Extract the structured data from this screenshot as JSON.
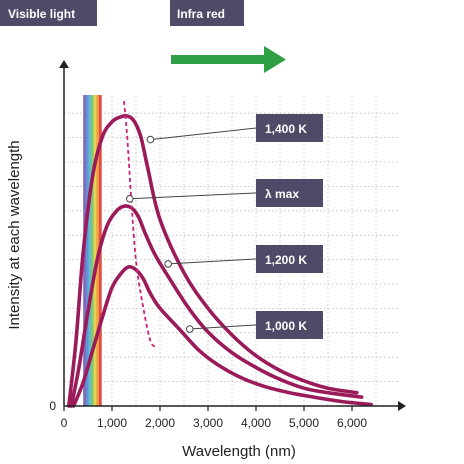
{
  "chart_data": {
    "type": "line",
    "title": "",
    "xlabel": "Wavelength (nm)",
    "ylabel": "Intensity at each wavelength",
    "xlim": [
      0,
      7000
    ],
    "ylim": [
      0,
      1
    ],
    "x_ticks": [
      "0",
      "1,000",
      "2,000",
      "3,000",
      "4,000",
      "5,000",
      "6,000"
    ],
    "y_ticks": [
      "0"
    ],
    "grid": true,
    "region_labels": {
      "visible": "Visible light",
      "infrared": "Infra red"
    },
    "series": [
      {
        "name": "1,400 K",
        "x": [
          100,
          250,
          400,
          600,
          800,
          1000,
          1150,
          1300,
          1450,
          1600,
          1750,
          2000,
          2500,
          3000,
          3500,
          4000,
          4500,
          5000,
          5500,
          6100
        ],
        "y": [
          0,
          0.22,
          0.52,
          0.78,
          0.91,
          0.96,
          0.975,
          0.98,
          0.965,
          0.91,
          0.8,
          0.63,
          0.45,
          0.33,
          0.24,
          0.17,
          0.12,
          0.085,
          0.06,
          0.045
        ]
      },
      {
        "name": "1,200 K",
        "x": [
          150,
          300,
          500,
          700,
          900,
          1100,
          1250,
          1400,
          1550,
          1700,
          1900,
          2200,
          2600,
          3000,
          3500,
          4000,
          4500,
          5000,
          5500,
          6200
        ],
        "y": [
          0,
          0.12,
          0.32,
          0.5,
          0.61,
          0.66,
          0.675,
          0.67,
          0.64,
          0.58,
          0.51,
          0.43,
          0.33,
          0.25,
          0.18,
          0.13,
          0.09,
          0.06,
          0.045,
          0.03
        ]
      },
      {
        "name": "1,000 K",
        "x": [
          200,
          400,
          600,
          800,
          1000,
          1200,
          1350,
          1500,
          1650,
          1800,
          2000,
          2400,
          2800,
          3200,
          3700,
          4200,
          4700,
          5200,
          5800,
          6400
        ],
        "y": [
          0,
          0.08,
          0.19,
          0.3,
          0.4,
          0.45,
          0.47,
          0.46,
          0.43,
          0.38,
          0.33,
          0.26,
          0.19,
          0.14,
          0.095,
          0.065,
          0.045,
          0.03,
          0.015,
          0.005
        ]
      }
    ],
    "lambda_max": {
      "name": "λ max",
      "x": [
        1250,
        1320,
        1400,
        1500,
        1620,
        1800,
        1950
      ],
      "y": [
        1.03,
        0.9,
        0.7,
        0.49,
        0.36,
        0.22,
        0.2
      ]
    },
    "colors": {
      "curve": "#9b1b5a",
      "lambda_line": "#cc2277",
      "tag_bg": "#4f4a68",
      "arrow": "#2ea043",
      "axis": "#222222",
      "grid": "#bbbbbb"
    },
    "spectrum_colors": [
      "#7b5fb8",
      "#5a8fd6",
      "#5cb6cf",
      "#7dc36b",
      "#e1d24a",
      "#f0a03a",
      "#e0463c"
    ],
    "spectrum_range": [
      400,
      780
    ]
  }
}
